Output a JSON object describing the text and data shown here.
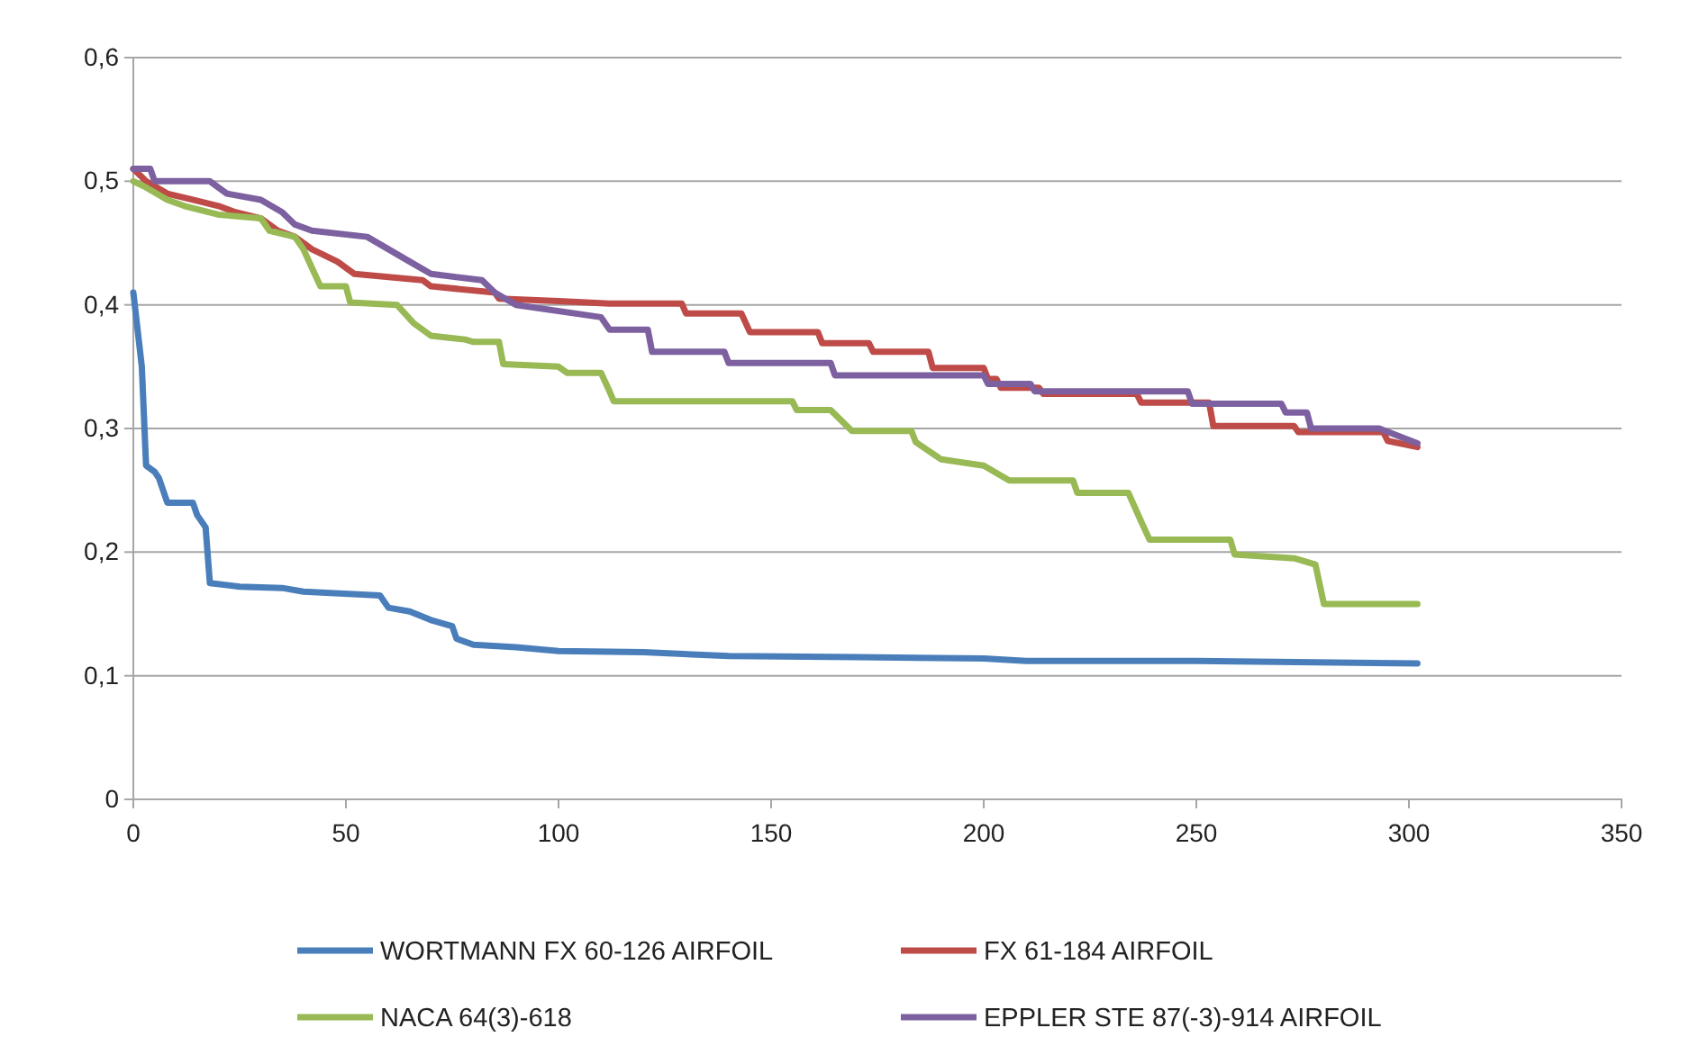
{
  "chart_data": {
    "type": "line",
    "xlim": [
      0,
      350
    ],
    "xticks": [
      0,
      50,
      100,
      150,
      200,
      250,
      300,
      350
    ],
    "ylim": [
      0,
      0.6
    ],
    "yticks": [
      {
        "value": 0,
        "label": "0"
      },
      {
        "value": 0.1,
        "label": "0,1"
      },
      {
        "value": 0.2,
        "label": "0,2"
      },
      {
        "value": 0.3,
        "label": "0,3"
      },
      {
        "value": 0.4,
        "label": "0,4"
      },
      {
        "value": 0.5,
        "label": "0,5"
      },
      {
        "value": 0.6,
        "label": "0,6"
      }
    ],
    "grid": "y",
    "legend": "bottom",
    "line_style": "solid",
    "marker": "none",
    "series": [
      {
        "name": "WORTMANN FX 60-126 AIRFOIL",
        "color": "#4a7ebb",
        "x": [
          0,
          2,
          3,
          5,
          6,
          8,
          14,
          15,
          17,
          18,
          25,
          35,
          40,
          58,
          60,
          65,
          70,
          75,
          76,
          80,
          90,
          100,
          120,
          140,
          170,
          200,
          210,
          250,
          302
        ],
        "values": [
          0.41,
          0.35,
          0.27,
          0.265,
          0.26,
          0.24,
          0.24,
          0.23,
          0.22,
          0.175,
          0.172,
          0.171,
          0.168,
          0.165,
          0.155,
          0.152,
          0.145,
          0.14,
          0.13,
          0.125,
          0.123,
          0.12,
          0.119,
          0.116,
          0.115,
          0.114,
          0.112,
          0.112,
          0.11
        ]
      },
      {
        "name": "FX 61-184 AIRFOIL",
        "color": "#be4b48",
        "x": [
          0,
          3,
          8,
          14,
          20,
          24,
          30,
          34,
          38,
          42,
          48,
          52,
          68,
          70,
          85,
          86,
          100,
          112,
          129,
          130,
          143,
          145,
          161,
          162,
          173,
          174,
          187,
          188,
          200,
          201,
          203,
          204,
          213,
          214,
          236,
          237,
          253,
          254,
          273,
          274,
          294,
          295,
          302
        ],
        "values": [
          0.51,
          0.5,
          0.49,
          0.485,
          0.48,
          0.475,
          0.47,
          0.46,
          0.455,
          0.445,
          0.435,
          0.425,
          0.42,
          0.415,
          0.41,
          0.405,
          0.403,
          0.401,
          0.401,
          0.393,
          0.393,
          0.378,
          0.378,
          0.369,
          0.369,
          0.362,
          0.362,
          0.349,
          0.349,
          0.34,
          0.34,
          0.333,
          0.333,
          0.328,
          0.328,
          0.321,
          0.321,
          0.302,
          0.302,
          0.297,
          0.297,
          0.29,
          0.285
        ]
      },
      {
        "name": "NACA 64(3)-618",
        "color": "#98b954",
        "x": [
          0,
          3,
          8,
          12,
          20,
          30,
          32,
          38,
          40,
          42,
          44,
          50,
          51,
          62,
          66,
          70,
          78,
          80,
          86,
          87,
          100,
          102,
          110,
          112,
          113,
          155,
          156,
          164,
          169,
          183,
          184,
          190,
          200,
          206,
          221,
          222,
          234,
          237,
          239,
          258,
          259,
          273,
          278,
          280,
          302
        ],
        "values": [
          0.5,
          0.495,
          0.485,
          0.48,
          0.473,
          0.47,
          0.46,
          0.455,
          0.445,
          0.43,
          0.415,
          0.415,
          0.402,
          0.4,
          0.385,
          0.375,
          0.372,
          0.37,
          0.37,
          0.352,
          0.35,
          0.345,
          0.345,
          0.33,
          0.322,
          0.322,
          0.315,
          0.315,
          0.298,
          0.298,
          0.289,
          0.275,
          0.27,
          0.258,
          0.258,
          0.248,
          0.248,
          0.225,
          0.21,
          0.21,
          0.198,
          0.195,
          0.19,
          0.158,
          0.158
        ]
      },
      {
        "name": "EPPLER STE 87(-3)-914 AIRFOIL",
        "color": "#7d60a0",
        "x": [
          0,
          4,
          5,
          18,
          22,
          30,
          35,
          38,
          42,
          55,
          60,
          65,
          70,
          82,
          85,
          90,
          110,
          112,
          121,
          122,
          130,
          139,
          140,
          164,
          165,
          200,
          201,
          211,
          212,
          248,
          249,
          270,
          271,
          276,
          277,
          293,
          302
        ],
        "values": [
          0.51,
          0.51,
          0.5,
          0.5,
          0.49,
          0.485,
          0.475,
          0.465,
          0.46,
          0.455,
          0.445,
          0.435,
          0.425,
          0.42,
          0.41,
          0.4,
          0.39,
          0.38,
          0.38,
          0.362,
          0.362,
          0.362,
          0.353,
          0.353,
          0.343,
          0.343,
          0.336,
          0.336,
          0.33,
          0.33,
          0.32,
          0.32,
          0.313,
          0.313,
          0.3,
          0.3,
          0.288
        ]
      }
    ]
  }
}
